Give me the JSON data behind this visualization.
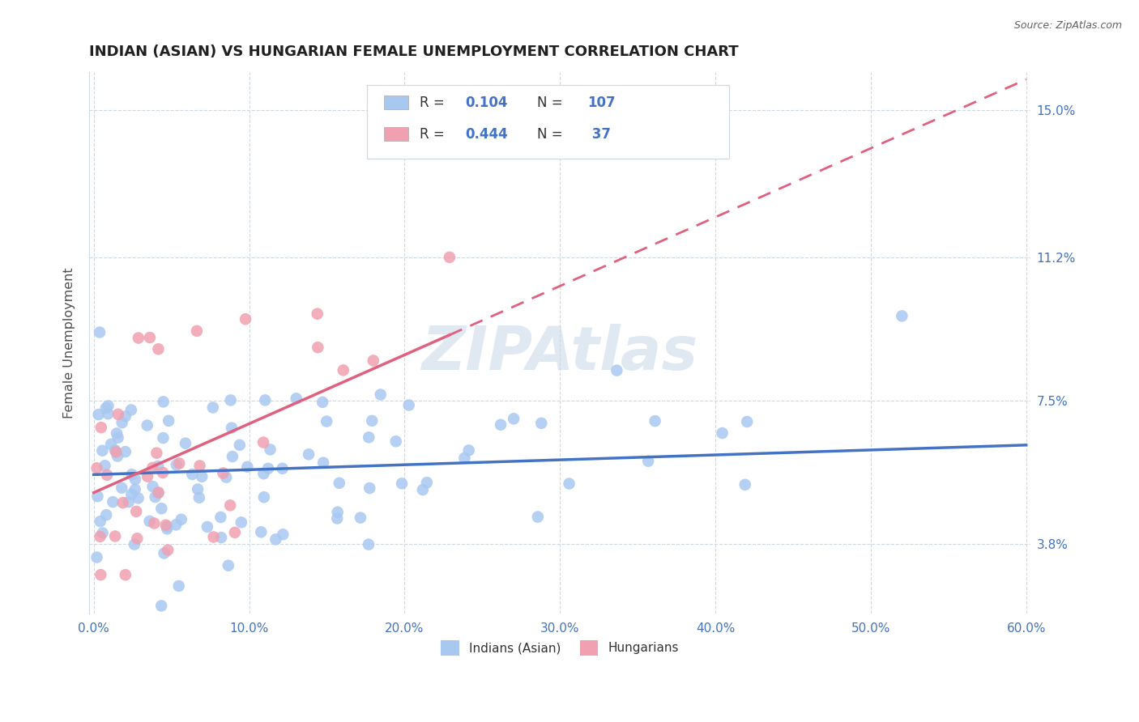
{
  "title": "INDIAN (ASIAN) VS HUNGARIAN FEMALE UNEMPLOYMENT CORRELATION CHART",
  "source": "Source: ZipAtlas.com",
  "ylabel": "Female Unemployment",
  "xlim": [
    0.0,
    0.6
  ],
  "ylim": [
    0.02,
    0.16
  ],
  "yticks": [
    0.038,
    0.075,
    0.112,
    0.15
  ],
  "ytick_labels": [
    "3.8%",
    "7.5%",
    "11.2%",
    "15.0%"
  ],
  "xticks": [
    0.0,
    0.1,
    0.2,
    0.3,
    0.4,
    0.5,
    0.6
  ],
  "xtick_labels": [
    "0.0%",
    "10.0%",
    "20.0%",
    "30.0%",
    "40.0%",
    "50.0%",
    "60.0%"
  ],
  "indian_color": "#a8c8f0",
  "hungarian_color": "#f0a0b0",
  "indian_R": 0.104,
  "indian_N": 107,
  "hungarian_R": 0.444,
  "hungarian_N": 37,
  "indian_line_color": "#4472c4",
  "hungarian_line_color": "#e06080",
  "watermark_text": "ZIPAtlas",
  "watermark_color": "#c8d8e8",
  "legend_label_indian": "Indians (Asian)",
  "legend_label_hungarian": "Hungarians",
  "background_color": "#ffffff",
  "grid_color": "#d0d8e0",
  "title_color": "#202020",
  "axis_label_color": "#505050",
  "tick_label_color": "#4472c4",
  "legend_text_color": "#333333",
  "r_val_color": "#4472c4",
  "source_color": "#606060"
}
